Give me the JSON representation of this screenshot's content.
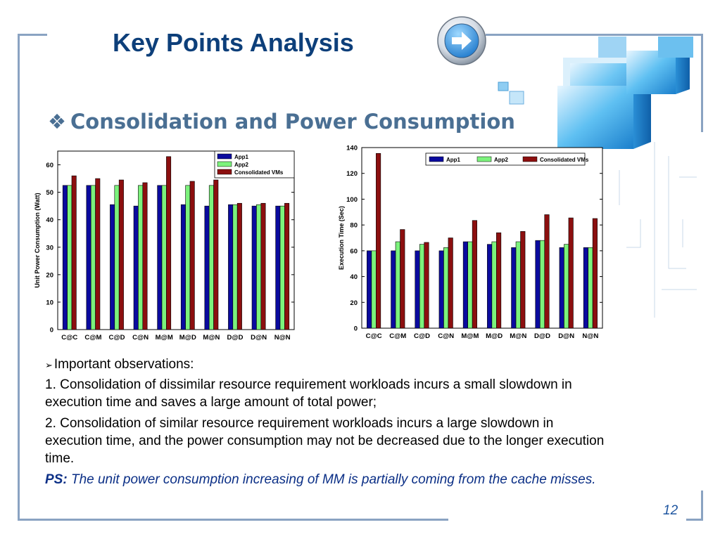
{
  "slide": {
    "title": "Key Points Analysis",
    "subtitle": "Consolidation and Power Consumption",
    "page_number": "12"
  },
  "observations": {
    "heading": "Important observations:",
    "items": [
      "1. Consolidation of dissimilar  resource requirement workloads incurs a small slowdown in execution time and saves a large amount of total power;",
      "2. Consolidation of similar resource requirement workloads incurs a large slowdown in execution time, and the power consumption may not be decreased due to the longer execution time."
    ],
    "ps_label": "PS:",
    "ps_text": " The unit power consumption increasing of MM is partially coming from the cache misses."
  },
  "colors": {
    "app1": "#0a0a9e",
    "app2": "#7cf27c",
    "consolidated": "#8c0f0f",
    "title": "#0d3f7a",
    "subtitle": "#4a6f93"
  },
  "icons": [
    "diamond-bullet-icon",
    "arrow-right-icon",
    "arrow-bullet-icon"
  ],
  "chart_data": [
    {
      "type": "bar",
      "ylabel": "Unit Power Consumption (Watt)",
      "xlabel": "",
      "ylim": [
        0,
        65
      ],
      "yticks": [
        0,
        10,
        20,
        30,
        40,
        50,
        60
      ],
      "categories": [
        "C@C",
        "C@M",
        "C@D",
        "C@N",
        "M@M",
        "M@D",
        "M@N",
        "D@D",
        "D@N",
        "N@N"
      ],
      "legend_position": "top-right",
      "series": [
        {
          "name": "App1",
          "values": [
            52.5,
            52.5,
            45.5,
            45,
            52.5,
            45.5,
            45,
            45.5,
            45,
            45
          ]
        },
        {
          "name": "App2",
          "values": [
            52.5,
            52.5,
            52.5,
            52.5,
            52.5,
            52.5,
            52.5,
            45.5,
            45.5,
            45
          ]
        },
        {
          "name": "Consolidated VMs",
          "values": [
            56,
            55,
            54.5,
            53.5,
            63,
            54,
            54.5,
            46,
            46,
            46
          ]
        }
      ]
    },
    {
      "type": "bar",
      "ylabel": "Execution Time (Sec)",
      "xlabel": "",
      "ylim": [
        0,
        140
      ],
      "yticks": [
        0,
        20,
        40,
        60,
        80,
        100,
        120,
        140
      ],
      "categories": [
        "C@C",
        "C@M",
        "C@D",
        "C@N",
        "M@M",
        "M@D",
        "M@N",
        "D@D",
        "D@N",
        "N@N"
      ],
      "legend_position": "top",
      "series": [
        {
          "name": "App1",
          "values": [
            60,
            60,
            60,
            60,
            67,
            65,
            62.5,
            68,
            62.5,
            62.5
          ]
        },
        {
          "name": "App2",
          "values": [
            60,
            67,
            65,
            62.5,
            67,
            67,
            67,
            68,
            65,
            62.5
          ]
        },
        {
          "name": "Consolidated VMs",
          "values": [
            135.5,
            76.5,
            66.5,
            70,
            83.5,
            74,
            75,
            88,
            85.5,
            85
          ]
        }
      ]
    }
  ]
}
